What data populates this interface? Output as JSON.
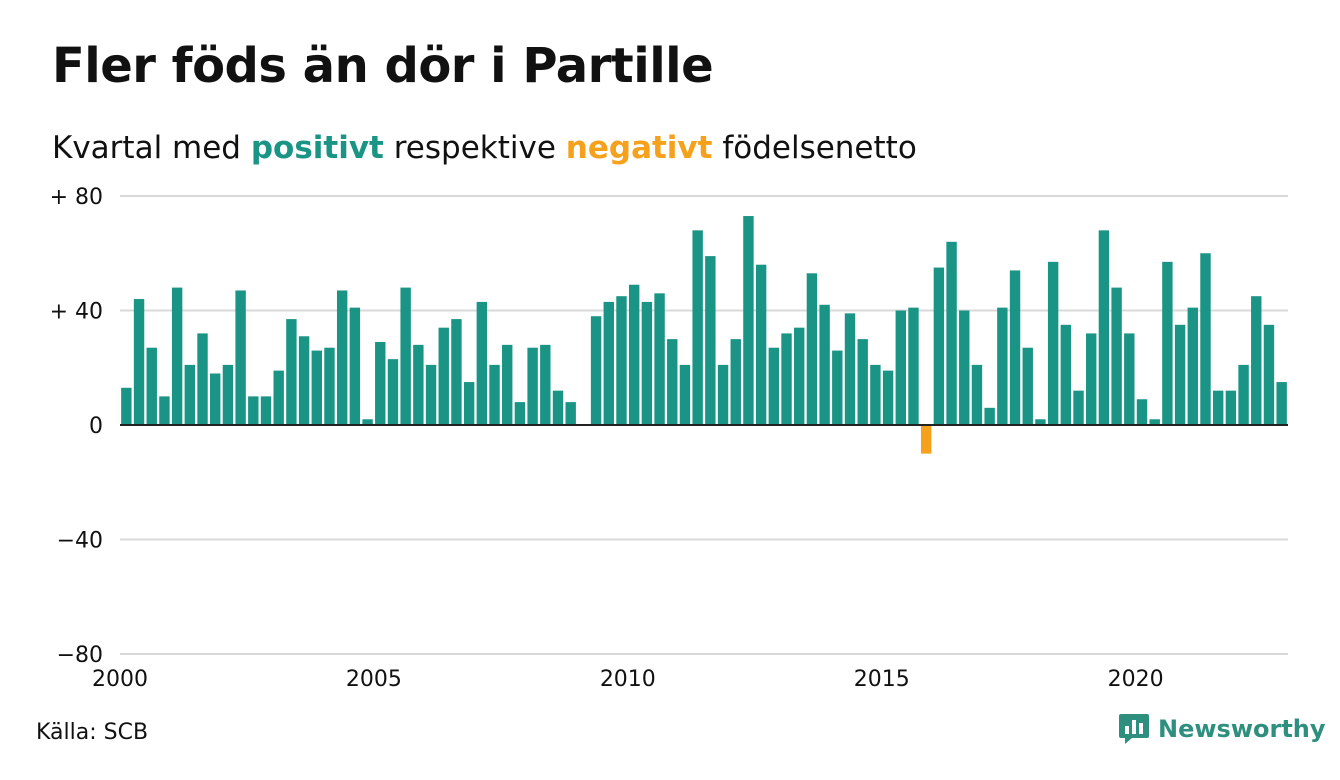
{
  "chart_data": {
    "type": "bar",
    "title": "Fler föds än dör i Partille",
    "subtitle": {
      "before": "Kvartal med ",
      "positive": "positivt",
      "middle": " respektive ",
      "negative": "negativt",
      "after": " födelsenetto"
    },
    "x_start": 2000,
    "x_end": 2023,
    "x_tick_labels": [
      "2000",
      "2005",
      "2010",
      "2015",
      "2020"
    ],
    "x_tick_years": [
      2000,
      2005,
      2010,
      2015,
      2020
    ],
    "y_ticks": [
      80,
      40,
      0,
      -40,
      -80
    ],
    "y_tick_labels": [
      "+ 80",
      "+ 40",
      "0",
      "−40",
      "−80"
    ],
    "ylim": [
      -80,
      80
    ],
    "grid": true,
    "colors": {
      "positive": "#1a9585",
      "negative": "#f5a11c",
      "grid": "#d9d9d9"
    },
    "quarters": [
      "2000 Q1",
      "2000 Q2",
      "2000 Q3",
      "2000 Q4",
      "2001 Q1",
      "2001 Q2",
      "2001 Q3",
      "2001 Q4",
      "2002 Q1",
      "2002 Q2",
      "2002 Q3",
      "2002 Q4",
      "2003 Q1",
      "2003 Q2",
      "2003 Q3",
      "2003 Q4",
      "2004 Q1",
      "2004 Q2",
      "2004 Q3",
      "2004 Q4",
      "2005 Q1",
      "2005 Q2",
      "2005 Q3",
      "2005 Q4",
      "2006 Q1",
      "2006 Q2",
      "2006 Q3",
      "2006 Q4",
      "2007 Q1",
      "2007 Q2",
      "2007 Q3",
      "2007 Q4",
      "2008 Q1",
      "2008 Q2",
      "2008 Q3",
      "2008 Q4",
      "2009 Q1",
      "2009 Q2",
      "2009 Q3",
      "2009 Q4",
      "2010 Q1",
      "2010 Q2",
      "2010 Q3",
      "2010 Q4",
      "2011 Q1",
      "2011 Q2",
      "2011 Q3",
      "2011 Q4",
      "2012 Q1",
      "2012 Q2",
      "2012 Q3",
      "2012 Q4",
      "2013 Q1",
      "2013 Q2",
      "2013 Q3",
      "2013 Q4",
      "2014 Q1",
      "2014 Q2",
      "2014 Q3",
      "2014 Q4",
      "2015 Q1",
      "2015 Q2",
      "2015 Q3",
      "2015 Q4",
      "2016 Q1",
      "2016 Q2",
      "2016 Q3",
      "2016 Q4",
      "2017 Q1",
      "2017 Q2",
      "2017 Q3",
      "2017 Q4",
      "2018 Q1",
      "2018 Q2",
      "2018 Q3",
      "2018 Q4",
      "2019 Q1",
      "2019 Q2",
      "2019 Q3",
      "2019 Q4",
      "2020 Q1",
      "2020 Q2",
      "2020 Q3",
      "2020 Q4",
      "2021 Q1",
      "2021 Q2",
      "2021 Q3",
      "2021 Q4",
      "2022 Q1",
      "2022 Q2",
      "2022 Q3",
      "2022 Q4"
    ],
    "values": [
      13,
      44,
      27,
      10,
      48,
      21,
      32,
      18,
      21,
      47,
      10,
      10,
      19,
      37,
      31,
      26,
      27,
      47,
      41,
      2,
      29,
      23,
      48,
      28,
      21,
      34,
      37,
      15,
      43,
      21,
      28,
      8,
      27,
      28,
      12,
      8,
      null,
      38,
      43,
      45,
      49,
      43,
      46,
      30,
      21,
      68,
      59,
      21,
      30,
      73,
      56,
      27,
      32,
      34,
      53,
      42,
      26,
      39,
      30,
      21,
      19,
      40,
      41,
      -10,
      55,
      64,
      40,
      21,
      6,
      41,
      54,
      27,
      2,
      57,
      35,
      12,
      32,
      68,
      48,
      32,
      9,
      2,
      57,
      35,
      41,
      60,
      12,
      12,
      21,
      45,
      35,
      15
    ]
  },
  "footer": {
    "source": "Källa: SCB",
    "logo_text": "Newsworthy",
    "logo_icon": "bar-chart-speech-bubble-icon"
  }
}
